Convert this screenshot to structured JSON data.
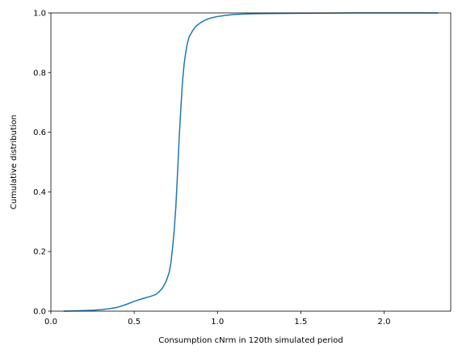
{
  "chart_data": {
    "type": "line",
    "title": "",
    "xlabel": "Consumption cNrm in 120th simulated period",
    "ylabel": "Cumulative distribution",
    "xlim": [
      0.0,
      2.4
    ],
    "ylim": [
      0.0,
      1.0
    ],
    "xticks": [
      0.0,
      0.5,
      1.0,
      1.5,
      2.0
    ],
    "xtick_labels": [
      "0.0",
      "0.5",
      "1.0",
      "1.5",
      "2.0"
    ],
    "yticks": [
      0.0,
      0.2,
      0.4,
      0.6,
      0.8,
      1.0
    ],
    "ytick_labels": [
      "0.0",
      "0.2",
      "0.4",
      "0.6",
      "0.8",
      "1.0"
    ],
    "grid": false,
    "legend": "none",
    "line_color": "#1f77b4",
    "series": [
      {
        "x": [
          0.08,
          0.15,
          0.2,
          0.25,
          0.3,
          0.35,
          0.4,
          0.45,
          0.5,
          0.55,
          0.6,
          0.63,
          0.65,
          0.67,
          0.69,
          0.7,
          0.71,
          0.72,
          0.73,
          0.74,
          0.75,
          0.76,
          0.77,
          0.78,
          0.79,
          0.8,
          0.81,
          0.82,
          0.83,
          0.85,
          0.87,
          0.9,
          0.93,
          0.96,
          1.0,
          1.05,
          1.1,
          1.2,
          1.3,
          1.5,
          1.8,
          2.1,
          2.32
        ],
        "y": [
          0.0,
          0.001,
          0.002,
          0.003,
          0.005,
          0.008,
          0.013,
          0.022,
          0.033,
          0.042,
          0.05,
          0.056,
          0.065,
          0.078,
          0.098,
          0.113,
          0.13,
          0.16,
          0.21,
          0.27,
          0.35,
          0.46,
          0.58,
          0.68,
          0.77,
          0.83,
          0.87,
          0.9,
          0.92,
          0.94,
          0.955,
          0.968,
          0.977,
          0.983,
          0.988,
          0.992,
          0.995,
          0.997,
          0.998,
          0.999,
          1.0,
          1.0,
          1.0
        ]
      }
    ]
  }
}
